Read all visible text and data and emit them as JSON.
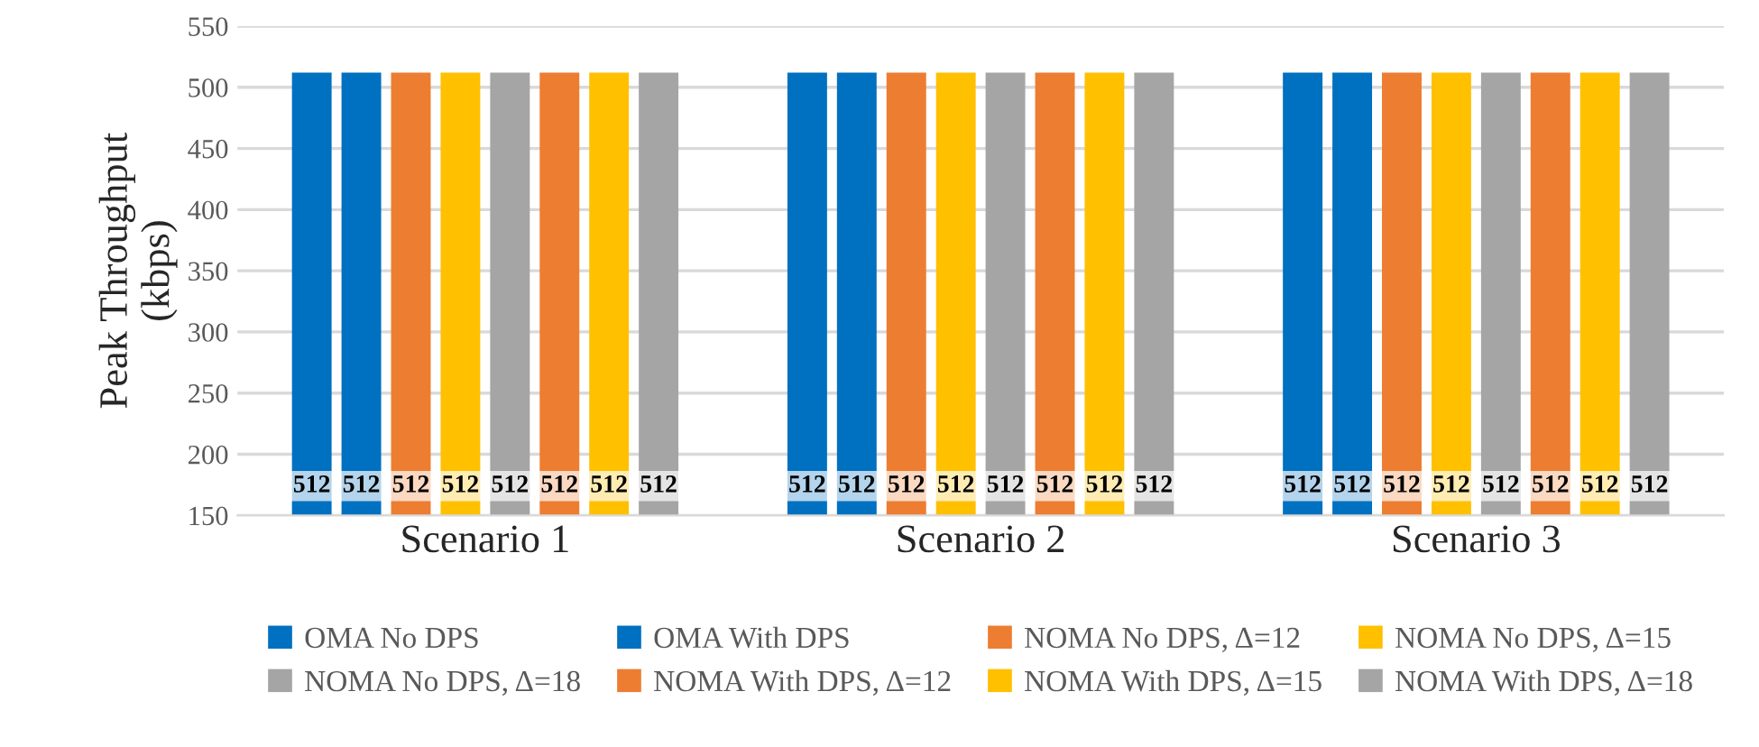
{
  "chart_data": {
    "type": "bar",
    "ylabel": "Peak Throughput\n(kbps)",
    "categories": [
      "Scenario 1",
      "Scenario 2",
      "Scenario 3"
    ],
    "ylim": [
      150,
      550
    ],
    "yticks": [
      150,
      200,
      250,
      300,
      350,
      400,
      450,
      500,
      550
    ],
    "grid": "y",
    "legend": "bottom",
    "data_labels": true,
    "series": [
      {
        "name": "OMA No DPS",
        "color": "#0070c0",
        "values": [
          512,
          512,
          512
        ]
      },
      {
        "name": "OMA With DPS",
        "color": "#0070c0",
        "values": [
          512,
          512,
          512
        ]
      },
      {
        "name": "NOMA No DPS, Δ=12",
        "color": "#ed7d31",
        "values": [
          512,
          512,
          512
        ]
      },
      {
        "name": "NOMA No DPS, Δ=15",
        "color": "#ffc000",
        "values": [
          512,
          512,
          512
        ]
      },
      {
        "name": "NOMA No DPS, Δ=18",
        "color": "#a5a5a5",
        "values": [
          512,
          512,
          512
        ]
      },
      {
        "name": "NOMA With DPS, Δ=12",
        "color": "#ed7d31",
        "values": [
          512,
          512,
          512
        ]
      },
      {
        "name": "NOMA With DPS, Δ=15",
        "color": "#ffc000",
        "values": [
          512,
          512,
          512
        ]
      },
      {
        "name": "NOMA With DPS, Δ=18",
        "color": "#a5a5a5",
        "values": [
          512,
          512,
          512
        ]
      }
    ]
  }
}
